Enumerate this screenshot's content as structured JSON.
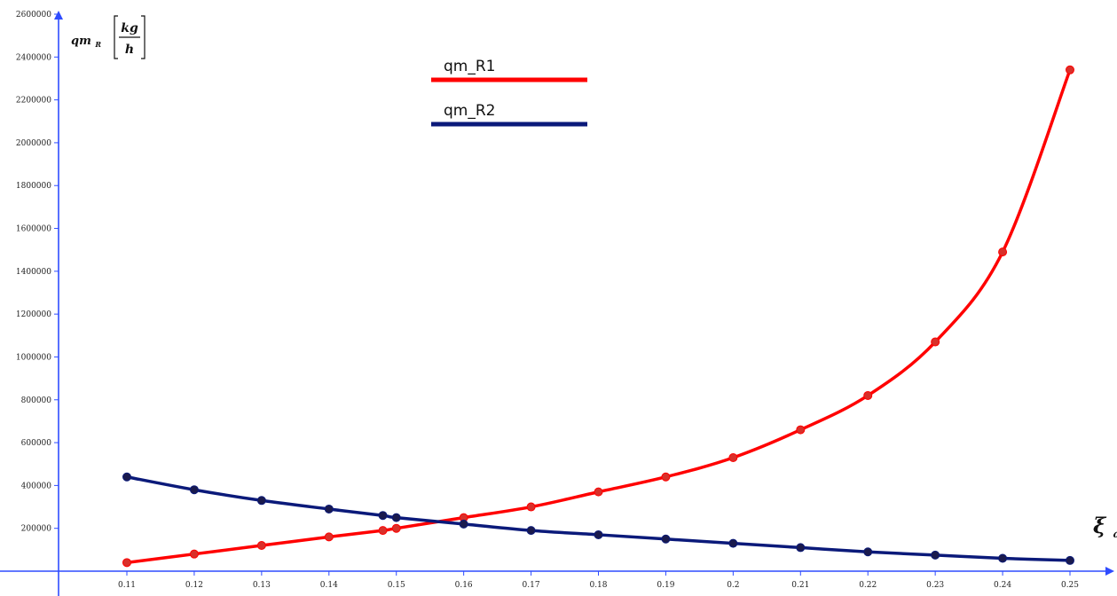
{
  "chart_data": {
    "type": "line",
    "ylabel": {
      "main": "qm",
      "sub": "R",
      "num": "kg",
      "den": "h"
    },
    "xlabel": {
      "main": "ξ",
      "sub": "a"
    },
    "xlim": [
      0.11,
      0.25
    ],
    "ylim": [
      0,
      2600000
    ],
    "x_ticks": [
      "0.11",
      "0.12",
      "0.13",
      "0.14",
      "0.15",
      "0.16",
      "0.17",
      "0.18",
      "0.19",
      "0.2",
      "0.21",
      "0.22",
      "0.23",
      "0.24",
      "0.25"
    ],
    "y_ticks": [
      "200000",
      "400000",
      "600000",
      "800000",
      "1000000",
      "1200000",
      "1400000",
      "1600000",
      "1800000",
      "2000000",
      "2200000",
      "2400000",
      "2600000"
    ],
    "legend_position": "top-center",
    "series": [
      {
        "name": "qm_R1",
        "color": "#ff0000",
        "x": [
          0.11,
          0.12,
          0.13,
          0.14,
          0.148,
          0.15,
          0.16,
          0.17,
          0.18,
          0.19,
          0.2,
          0.21,
          0.22,
          0.23,
          0.24,
          0.25
        ],
        "y": [
          40000,
          80000,
          120000,
          160000,
          190000,
          200000,
          250000,
          300000,
          370000,
          440000,
          530000,
          660000,
          820000,
          1070000,
          1490000,
          2340000
        ]
      },
      {
        "name": "qm_R2",
        "color": "#0b1a7a",
        "x": [
          0.11,
          0.12,
          0.13,
          0.14,
          0.148,
          0.15,
          0.16,
          0.17,
          0.18,
          0.19,
          0.2,
          0.21,
          0.22,
          0.23,
          0.24,
          0.25
        ],
        "y": [
          440000,
          380000,
          330000,
          290000,
          260000,
          250000,
          220000,
          190000,
          170000,
          150000,
          130000,
          110000,
          90000,
          75000,
          60000,
          50000
        ]
      }
    ]
  }
}
